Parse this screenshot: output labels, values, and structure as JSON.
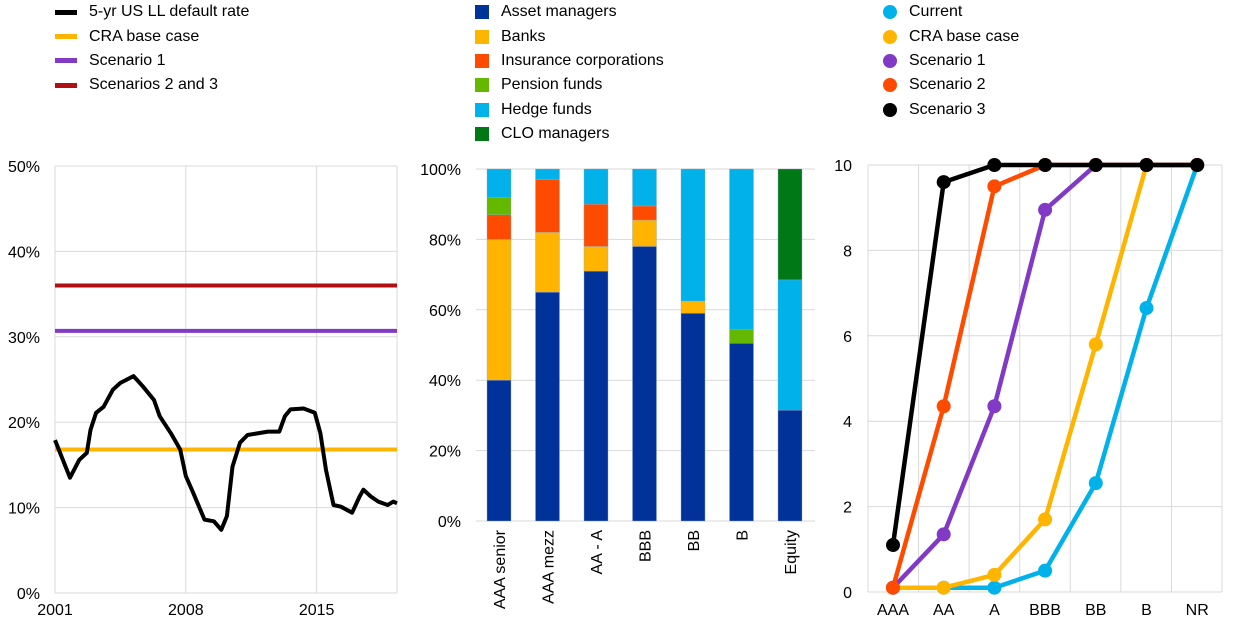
{
  "chart_data": [
    {
      "type": "line",
      "title": "",
      "legend": [
        "5-yr US LL default rate",
        "CRA base case",
        "Scenario 1",
        "Scenarios 2 and 3"
      ],
      "legend_placement": "top",
      "ylim": [
        0,
        50
      ],
      "yticks": [
        "0%",
        "10%",
        "20%",
        "30%",
        "40%",
        "50%"
      ],
      "xlim": [
        2001,
        2019.3
      ],
      "xticks": [
        {
          "value": 2001,
          "label": "2001"
        },
        {
          "value": 2008,
          "label": "2008"
        },
        {
          "value": 2015,
          "label": "2015"
        }
      ],
      "grid": true,
      "series": [
        {
          "name": "5-yr US LL default rate",
          "color": "#000000",
          "x": [
            2001.0,
            2001.8,
            2002.3,
            2002.7,
            2002.9,
            2003.2,
            2003.6,
            2004.1,
            2004.5,
            2005.2,
            2005.7,
            2006.3,
            2006.6,
            2007.2,
            2007.7,
            2008.0,
            2008.4,
            2009.0,
            2009.5,
            2009.9,
            2010.2,
            2010.5,
            2010.9,
            2011.3,
            2012.4,
            2013.0,
            2013.3,
            2013.6,
            2014.3,
            2014.9,
            2015.2,
            2015.5,
            2015.9,
            2016.3,
            2016.9,
            2017.3,
            2017.5,
            2017.9,
            2018.3,
            2018.8,
            2019.1,
            2019.3
          ],
          "y": [
            17.9,
            13.5,
            15.6,
            16.4,
            19.1,
            21.1,
            21.8,
            23.8,
            24.6,
            25.4,
            24.2,
            22.6,
            20.7,
            18.7,
            16.8,
            13.7,
            11.7,
            8.6,
            8.4,
            7.4,
            9.0,
            14.8,
            17.6,
            18.5,
            18.9,
            18.9,
            20.7,
            21.5,
            21.6,
            21.1,
            18.7,
            14.4,
            10.3,
            10.1,
            9.4,
            11.3,
            12.1,
            11.3,
            10.7,
            10.3,
            10.7,
            10.5
          ]
        },
        {
          "name": "CRA base case",
          "color": "#FFB400",
          "constant": 16.8
        },
        {
          "name": "Scenario 1",
          "color": "#8139C6",
          "constant": 30.7
        },
        {
          "name": "Scenarios 2 and 3",
          "color": "#B20F12",
          "constant": 36.0
        }
      ]
    },
    {
      "type": "bar",
      "stacked": true,
      "title": "",
      "legend_placement": "top",
      "ylim": [
        0,
        100
      ],
      "yticks": [
        "0%",
        "20%",
        "40%",
        "60%",
        "80%",
        "100%"
      ],
      "grid": true,
      "categories": [
        "AAA senior",
        "AAA mezz",
        "AA - A",
        "BBB",
        "BB",
        "B",
        "Equity"
      ],
      "series": [
        {
          "name": "Asset managers",
          "color": "#003299",
          "values": [
            40,
            65,
            71,
            78,
            59,
            50.5,
            31.5
          ]
        },
        {
          "name": "Banks",
          "color": "#FFB400",
          "values": [
            40,
            17,
            7,
            7.5,
            3.5,
            0,
            0
          ]
        },
        {
          "name": "Insurance corporations",
          "color": "#FF4B00",
          "values": [
            7,
            15,
            12,
            4,
            0,
            0,
            0
          ]
        },
        {
          "name": "Pension funds",
          "color": "#65B800",
          "values": [
            5,
            0,
            0,
            0,
            0,
            4,
            0
          ]
        },
        {
          "name": "Hedge funds",
          "color": "#00B1EA",
          "values": [
            8,
            3,
            10,
            10.5,
            37.5,
            45.5,
            37
          ]
        },
        {
          "name": "CLO managers",
          "color": "#007816",
          "values": [
            0,
            0,
            0,
            0,
            0,
            0,
            31.5
          ]
        }
      ]
    },
    {
      "type": "line",
      "title": "",
      "legend_placement": "top",
      "ylim": [
        0,
        10
      ],
      "yticks": [
        "0",
        "2",
        "4",
        "6",
        "8",
        "10"
      ],
      "grid": true,
      "categories": [
        "AAA",
        "AA",
        "A",
        "BBB",
        "BB",
        "B",
        "NR"
      ],
      "series": [
        {
          "name": "Current",
          "color": "#00B1EA",
          "values": [
            0.1,
            0.1,
            0.1,
            0.5,
            2.55,
            6.65,
            10
          ]
        },
        {
          "name": "CRA base case",
          "color": "#FFB400",
          "values": [
            0.1,
            0.1,
            0.4,
            1.7,
            5.8,
            10,
            10
          ]
        },
        {
          "name": "Scenario 1",
          "color": "#8139C6",
          "values": [
            0.1,
            1.35,
            4.35,
            8.95,
            10,
            10,
            10
          ]
        },
        {
          "name": "Scenario 2",
          "color": "#FF4B00",
          "values": [
            0.1,
            4.35,
            9.5,
            10,
            10,
            10,
            10
          ]
        },
        {
          "name": "Scenario 3",
          "color": "#000000",
          "values": [
            1.1,
            9.6,
            10,
            10,
            10,
            10,
            10
          ]
        }
      ]
    }
  ]
}
